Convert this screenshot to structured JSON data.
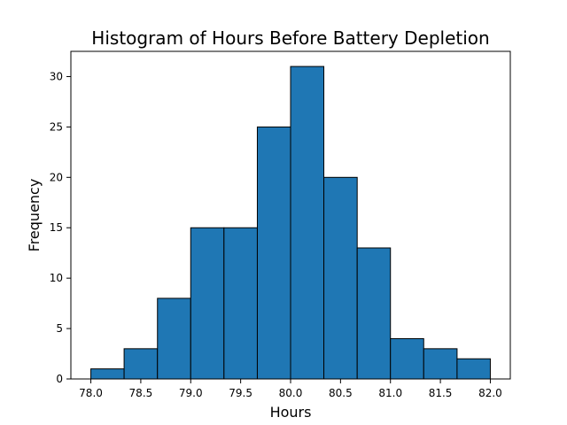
{
  "chart_data": {
    "type": "bar",
    "title": "Histogram of Hours Before Battery Depletion",
    "xlabel": "Hours",
    "ylabel": "Frequency",
    "bin_edges": [
      78.0,
      78.333,
      78.667,
      79.0,
      79.333,
      79.667,
      80.0,
      80.333,
      80.667,
      81.0,
      81.333,
      81.667,
      82.0
    ],
    "values": [
      1,
      3,
      8,
      15,
      15,
      25,
      31,
      20,
      13,
      4,
      3,
      2
    ],
    "xlim": [
      77.8,
      82.2
    ],
    "ylim": [
      0,
      32.5
    ],
    "x_ticks": [
      "78.0",
      "78.5",
      "79.0",
      "79.5",
      "80.0",
      "80.5",
      "81.0",
      "81.5",
      "82.0"
    ],
    "y_ticks": [
      "0",
      "5",
      "10",
      "15",
      "20",
      "25",
      "30"
    ],
    "bar_color": "#1f77b4",
    "grid": false,
    "legend": "none"
  }
}
